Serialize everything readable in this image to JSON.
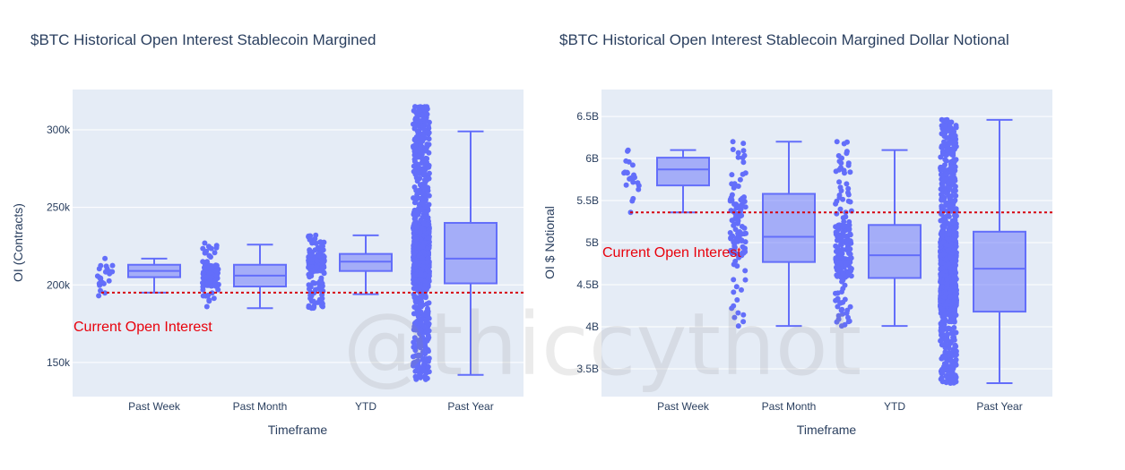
{
  "watermark": "@thiccythot",
  "colors": {
    "plot_bg": "#e5ecf6",
    "grid": "#ffffff",
    "marker": "#636efa",
    "box_fill": "rgba(99,110,250,0.5)",
    "reference_line": "#d6000f",
    "annotation": "#e8000b"
  },
  "chart_data": [
    {
      "type": "box",
      "title": "$BTC Historical Open Interest Stablecoin Margined",
      "xlabel": "Timeframe",
      "ylabel": "OI (Contracts)",
      "ylim": [
        128000,
        326000
      ],
      "yticks": [
        150000,
        200000,
        250000,
        300000
      ],
      "ytick_labels": [
        "150k",
        "200k",
        "250k",
        "300k"
      ],
      "categories": [
        "Past Week",
        "Past Month",
        "YTD",
        "Past Year"
      ],
      "boxes": [
        {
          "name": "Past Week",
          "min": 195000,
          "q1": 205000,
          "median": 209000,
          "q3": 213000,
          "max": 217000,
          "point_min": 193000,
          "point_max": 217000,
          "n_points": 22
        },
        {
          "name": "Past Month",
          "min": 185000,
          "q1": 199000,
          "median": 206000,
          "q3": 213000,
          "max": 226000,
          "point_min": 186000,
          "point_max": 227000,
          "n_points": 110
        },
        {
          "name": "YTD",
          "min": 194000,
          "q1": 209000,
          "median": 215000,
          "q3": 220000,
          "max": 232000,
          "point_min": 185000,
          "point_max": 232000,
          "n_points": 180
        },
        {
          "name": "Past Year",
          "min": 142000,
          "q1": 201000,
          "median": 217000,
          "q3": 240000,
          "max": 299000,
          "point_min": 139000,
          "point_max": 315000,
          "n_points": 1100
        }
      ],
      "reference_line": {
        "value": 195000,
        "label": "Current Open Interest"
      }
    },
    {
      "type": "box",
      "title": "$BTC Historical Open Interest Stablecoin Margined Dollar Notional",
      "xlabel": "Timeframe",
      "ylabel": "OI $ Notional",
      "ylim": [
        3170000000,
        6820000000
      ],
      "yticks": [
        3500000000,
        4000000000,
        4500000000,
        5000000000,
        5500000000,
        6000000000,
        6500000000
      ],
      "ytick_labels": [
        "3.5B",
        "4B",
        "4.5B",
        "5B",
        "5.5B",
        "6B",
        "6.5B"
      ],
      "categories": [
        "Past Week",
        "Past Month",
        "YTD",
        "Past Year"
      ],
      "boxes": [
        {
          "name": "Past Week",
          "min": 5360000000,
          "q1": 5680000000,
          "median": 5870000000,
          "q3": 6010000000,
          "max": 6100000000,
          "point_min": 5360000000,
          "point_max": 6100000000,
          "n_points": 22
        },
        {
          "name": "Past Month",
          "min": 4010000000,
          "q1": 4770000000,
          "median": 5070000000,
          "q3": 5580000000,
          "max": 6200000000,
          "point_min": 4010000000,
          "point_max": 6200000000,
          "n_points": 110
        },
        {
          "name": "YTD",
          "min": 4010000000,
          "q1": 4580000000,
          "median": 4850000000,
          "q3": 5210000000,
          "max": 6100000000,
          "point_min": 4010000000,
          "point_max": 6200000000,
          "n_points": 180
        },
        {
          "name": "Past Year",
          "min": 3330000000,
          "q1": 4180000000,
          "median": 4690000000,
          "q3": 5130000000,
          "max": 6460000000,
          "point_min": 3330000000,
          "point_max": 6460000000,
          "n_points": 1100
        }
      ],
      "reference_line": {
        "value": 5360000000,
        "label": "Current Open Interest"
      }
    }
  ]
}
